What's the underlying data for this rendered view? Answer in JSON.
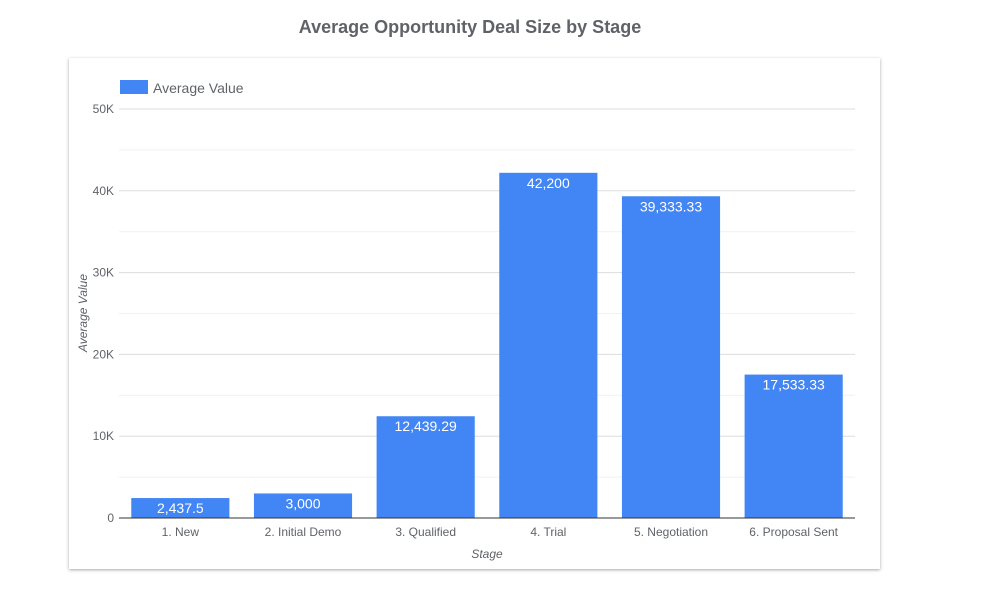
{
  "chart_data": {
    "type": "bar",
    "title": "Average Opportunity Deal Size by Stage",
    "xlabel": "Stage",
    "ylabel": "Average Value",
    "categories": [
      "1. New",
      "2. Initial Demo",
      "3. Qualified",
      "4. Trial",
      "5. Negotiation",
      "6. Proposal Sent"
    ],
    "series": [
      {
        "name": "Average Value",
        "values": [
          2437.5,
          3000,
          12439.29,
          42200,
          39333.33,
          17533.33
        ],
        "labels": [
          "2,437.5",
          "3,000",
          "12,439.29",
          "42,200",
          "39,333.33",
          "17,533.33"
        ],
        "color": "#4285f4"
      }
    ],
    "ylim": [
      0,
      50000
    ],
    "yticks": [
      0,
      10000,
      20000,
      30000,
      40000,
      50000
    ],
    "ytick_labels": [
      "0",
      "10K",
      "20K",
      "30K",
      "40K",
      "50K"
    ],
    "minor_gridlines": [
      5000,
      15000,
      25000,
      35000,
      45000
    ],
    "legend_position": "top-left",
    "grid": true
  }
}
